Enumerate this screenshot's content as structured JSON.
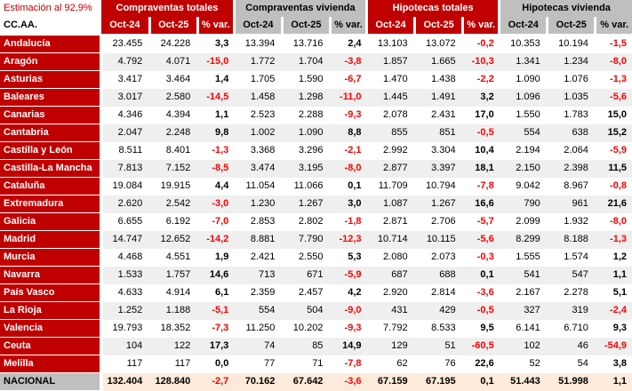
{
  "header": {
    "estimation_label": "Estimación al 92,9%",
    "row_axis_label": "CC.AA."
  },
  "colors": {
    "accent_red": "#C00000",
    "header_gray": "#BFBFBF",
    "stripe_gray": "#EFEFEF",
    "total_row_bg": "#FDEADA",
    "negative_value": "#FF0000"
  },
  "chart_data": {
    "type": "table",
    "title": "Estimación al 92,9%",
    "row_header": "CC.AA.",
    "column_groups": [
      {
        "label": "Compraventas totales",
        "theme": "red"
      },
      {
        "label": "Compraventas vivienda",
        "theme": "gray"
      },
      {
        "label": "Hipotecas totales",
        "theme": "red"
      },
      {
        "label": "Hipotecas vivienda",
        "theme": "gray"
      }
    ],
    "sub_columns": [
      "Oct-24",
      "Oct-25",
      "% var."
    ],
    "rows": [
      {
        "name": "Andalucía",
        "cells": [
          "23.455",
          "24.228",
          "3,3",
          "13.394",
          "13.716",
          "2,4",
          "13.103",
          "13.072",
          "-0,2",
          "10.353",
          "10.194",
          "-1,5"
        ]
      },
      {
        "name": "Aragón",
        "cells": [
          "4.792",
          "4.071",
          "-15,0",
          "1.772",
          "1.704",
          "-3,8",
          "1.857",
          "1.665",
          "-10,3",
          "1.341",
          "1.234",
          "-8,0"
        ]
      },
      {
        "name": "Asturias",
        "cells": [
          "3.417",
          "3.464",
          "1,4",
          "1.705",
          "1.590",
          "-6,7",
          "1.470",
          "1.438",
          "-2,2",
          "1.090",
          "1.076",
          "-1,3"
        ]
      },
      {
        "name": "Baleares",
        "cells": [
          "3.017",
          "2.580",
          "-14,5",
          "1.458",
          "1.298",
          "-11,0",
          "1.445",
          "1.491",
          "3,2",
          "1.096",
          "1.035",
          "-5,6"
        ]
      },
      {
        "name": "Canarias",
        "cells": [
          "4.346",
          "4.394",
          "1,1",
          "2.523",
          "2.288",
          "-9,3",
          "2.078",
          "2.431",
          "17,0",
          "1.550",
          "1.783",
          "15,0"
        ]
      },
      {
        "name": "Cantabria",
        "cells": [
          "2.047",
          "2.248",
          "9,8",
          "1.002",
          "1.090",
          "8,8",
          "855",
          "851",
          "-0,5",
          "554",
          "638",
          "15,2"
        ]
      },
      {
        "name": "Castilla y León",
        "cells": [
          "8.511",
          "8.401",
          "-1,3",
          "3.368",
          "3.296",
          "-2,1",
          "2.992",
          "3.304",
          "10,4",
          "2.194",
          "2.064",
          "-5,9"
        ]
      },
      {
        "name": "Castilla-La Mancha",
        "cells": [
          "7.813",
          "7.152",
          "-8,5",
          "3.474",
          "3.195",
          "-8,0",
          "2.877",
          "3.397",
          "18,1",
          "2.150",
          "2.398",
          "11,5"
        ]
      },
      {
        "name": "Cataluña",
        "cells": [
          "19.084",
          "19.915",
          "4,4",
          "11.054",
          "11.066",
          "0,1",
          "11.709",
          "10.794",
          "-7,8",
          "9.042",
          "8.967",
          "-0,8"
        ]
      },
      {
        "name": "Extremadura",
        "cells": [
          "2.620",
          "2.542",
          "-3,0",
          "1.230",
          "1.267",
          "3,0",
          "1.087",
          "1.267",
          "16,6",
          "790",
          "961",
          "21,6"
        ]
      },
      {
        "name": "Galicia",
        "cells": [
          "6.655",
          "6.192",
          "-7,0",
          "2.853",
          "2.802",
          "-1,8",
          "2.871",
          "2.706",
          "-5,7",
          "2.099",
          "1.932",
          "-8,0"
        ]
      },
      {
        "name": "Madrid",
        "cells": [
          "14.747",
          "12.652",
          "-14,2",
          "8.881",
          "7.790",
          "-12,3",
          "10.714",
          "10.115",
          "-5,6",
          "8.299",
          "8.188",
          "-1,3"
        ]
      },
      {
        "name": "Murcia",
        "cells": [
          "4.468",
          "4.551",
          "1,9",
          "2.421",
          "2.550",
          "5,3",
          "2.080",
          "2.073",
          "-0,3",
          "1.555",
          "1.574",
          "1,2"
        ]
      },
      {
        "name": "Navarra",
        "cells": [
          "1.533",
          "1.757",
          "14,6",
          "713",
          "671",
          "-5,9",
          "687",
          "688",
          "0,1",
          "541",
          "547",
          "1,1"
        ]
      },
      {
        "name": "País Vasco",
        "cells": [
          "4.633",
          "4.914",
          "6,1",
          "2.359",
          "2.457",
          "4,2",
          "2.920",
          "2.814",
          "-3,6",
          "2.167",
          "2.278",
          "5,1"
        ]
      },
      {
        "name": "La Rioja",
        "cells": [
          "1.252",
          "1.188",
          "-5,1",
          "554",
          "504",
          "-9,0",
          "431",
          "429",
          "-0,5",
          "327",
          "319",
          "-2,4"
        ]
      },
      {
        "name": "Valencia",
        "cells": [
          "19.793",
          "18.352",
          "-7,3",
          "11.250",
          "10.202",
          "-9,3",
          "7.792",
          "8.533",
          "9,5",
          "6.141",
          "6.710",
          "9,3"
        ]
      },
      {
        "name": "Ceuta",
        "cells": [
          "104",
          "122",
          "17,3",
          "74",
          "85",
          "14,9",
          "129",
          "51",
          "-60,5",
          "102",
          "46",
          "-54,9"
        ]
      },
      {
        "name": "Melilla",
        "cells": [
          "117",
          "117",
          "0,0",
          "77",
          "71",
          "-7,8",
          "62",
          "76",
          "22,6",
          "52",
          "54",
          "3,8"
        ]
      },
      {
        "name": "NACIONAL",
        "is_total": true,
        "cells": [
          "132.404",
          "128.840",
          "-2,7",
          "70.162",
          "67.642",
          "-3,6",
          "67.159",
          "67.195",
          "0,1",
          "51.443",
          "51.998",
          "1,1"
        ]
      }
    ]
  }
}
